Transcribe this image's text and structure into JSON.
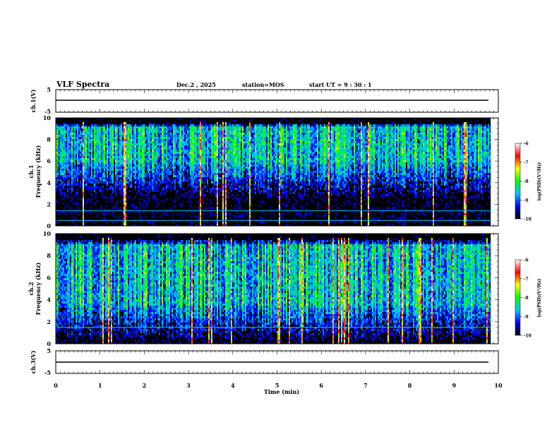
{
  "header": {
    "title": "VLF Spectra",
    "date": "Dec.2 , 2025",
    "station": "station=MOS",
    "start_time": "start UT =  9 : 30 : 1"
  },
  "colorbar_ch1": {
    "label": "log(PSD)(V²/Hz)",
    "ticks": [
      "-6",
      "-7",
      "-8",
      "-9",
      "-10"
    ],
    "stops": [
      "#ffffff",
      "#ff0000",
      "#ffff00",
      "#00ff00",
      "#00c8ff",
      "#0000ff",
      "#000000"
    ]
  },
  "colorbar_ch2": {
    "label": "log(PSD)(V²/Hz)",
    "ticks": [
      "-6",
      "-7",
      "-8",
      "-9",
      "-10"
    ],
    "stops": [
      "#ffffff",
      "#ff0000",
      "#ffff00",
      "#00ff00",
      "#00c8ff",
      "#0000ff",
      "#000000"
    ]
  },
  "chart_data": [
    {
      "type": "line",
      "name": "waveform-ch1",
      "ylabel": "ch.1(V)",
      "ylim": [
        -5,
        5
      ],
      "yticks": [
        "5",
        "-5"
      ],
      "xlim": [
        0,
        10
      ],
      "baseline_value": 0,
      "description_value": "flat trace near 0 V"
    },
    {
      "type": "heatmap",
      "name": "spectrogram-ch1",
      "ylabel": "ch.1\nFrequency (kHz)",
      "ylim": [
        0,
        10
      ],
      "yticks": [
        "0",
        "2",
        "4",
        "6",
        "8",
        "10"
      ],
      "xlim": [
        0,
        10
      ],
      "data_end_min": 9.83,
      "color_range": [
        -10,
        -6
      ],
      "line_frequencies_khz": [
        0.5,
        1.4
      ],
      "band_core_khz": [
        5.8,
        9.2
      ]
    },
    {
      "type": "heatmap",
      "name": "spectrogram-ch2",
      "ylabel": "ch.2\nFrequency (kHz)",
      "ylim": [
        0,
        10
      ],
      "yticks": [
        "0",
        "2",
        "4",
        "6",
        "8",
        "10"
      ],
      "xlim": [
        0,
        10
      ],
      "data_end_min": 9.83,
      "color_range": [
        -10,
        -6
      ],
      "line_frequencies_khz": [
        1.5
      ],
      "band_core_khz": [
        3.5,
        9.0
      ]
    },
    {
      "type": "line",
      "name": "waveform-ch3",
      "ylabel": "ch.3(V)",
      "ylim": [
        -5,
        5
      ],
      "yticks": [
        "5",
        "-5"
      ],
      "xlim": [
        0,
        10
      ],
      "baseline_value": 0,
      "description_value": "flat trace near 0 V"
    }
  ],
  "x_axis": {
    "label": "Time (min)",
    "ticks": [
      "0",
      "1",
      "2",
      "3",
      "4",
      "5",
      "6",
      "7",
      "8",
      "9",
      "10"
    ]
  }
}
